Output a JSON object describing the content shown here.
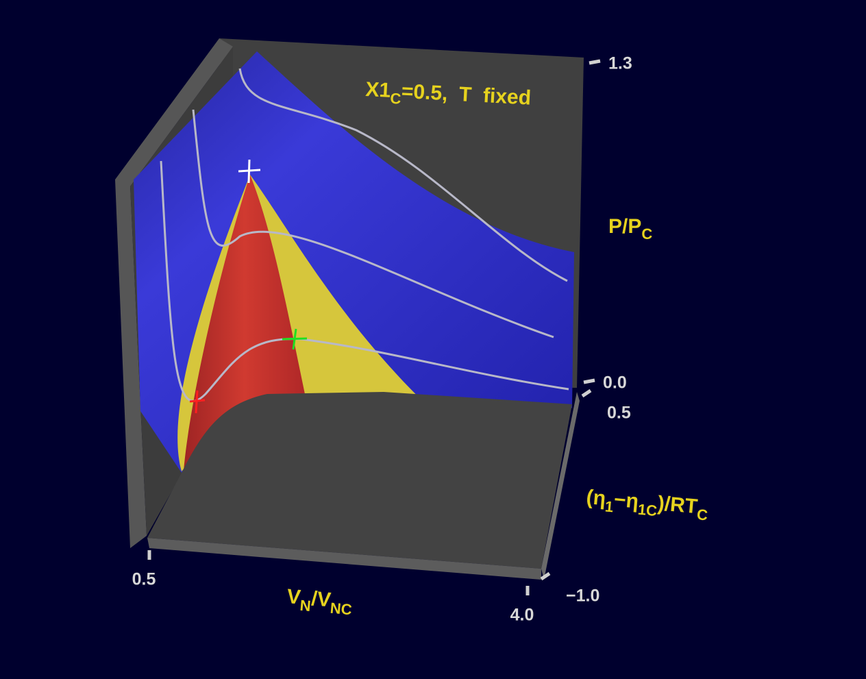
{
  "chart_data": {
    "type": "surface",
    "title": [
      {
        "text": "X1"
      },
      {
        "text": "C",
        "sub": true
      },
      {
        "text": "=0.5,  T  fixed"
      }
    ],
    "x_label": [
      {
        "text": "V"
      },
      {
        "text": "N",
        "sub": true
      },
      {
        "text": "/V"
      },
      {
        "text": "NC",
        "sub": true
      }
    ],
    "y_label": [
      {
        "text": "(η"
      },
      {
        "text": "1",
        "sub": true
      },
      {
        "text": "−η"
      },
      {
        "text": "1C",
        "sub": true
      },
      {
        "text": ")/RT"
      },
      {
        "text": "C",
        "sub": true
      }
    ],
    "z_label": [
      {
        "text": "P/P"
      },
      {
        "text": "C",
        "sub": true
      }
    ],
    "xlim": [
      0.5,
      4
    ],
    "xticks": [
      0.5,
      {
        "value": 4,
        "label": "4.0"
      }
    ],
    "ylim": [
      -1,
      0.5
    ],
    "yticks": [
      {
        "value": -1,
        "label": "−1.0"
      },
      0.5
    ],
    "zlim": [
      0,
      1.3
    ],
    "zticks": [
      {
        "value": 0,
        "label": "0.0"
      },
      1.3
    ]
  }
}
